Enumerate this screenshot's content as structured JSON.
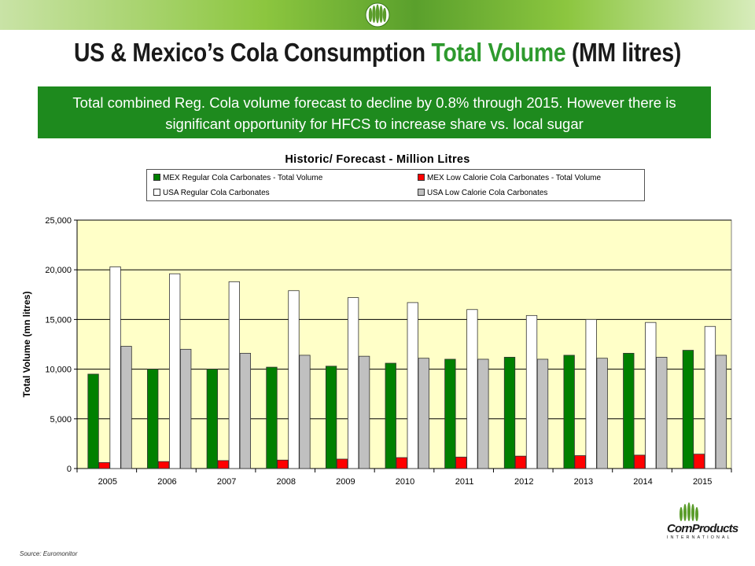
{
  "slide": {
    "title_part1": "US & Mexico’s Cola Consumption ",
    "title_accent": "Total Volume",
    "title_part2": " (MM litres)",
    "callout_line1": "Total combined Reg. Cola volume forecast to decline by  0.8% through 2015.  However there is",
    "callout_line2": "significant opportunity for HFCS to increase share vs. local sugar",
    "source": "Source: Euromonitor",
    "logo_name": "CornProducts",
    "logo_sub": "INTERNATIONAL"
  },
  "colors": {
    "accent_green": "#2e9a2e",
    "callout_bg": "#1e8a1e",
    "plot_bg": "#ffffc8"
  },
  "chart_data": {
    "type": "bar",
    "title": "Historic/ Forecast - Million Litres",
    "xlabel": "",
    "ylabel": "Total Volume (mn litres)",
    "ylim": [
      0,
      25000
    ],
    "yticks": [
      0,
      5000,
      10000,
      15000,
      20000,
      25000
    ],
    "ytick_labels": [
      "0",
      "5,000",
      "10,000",
      "15,000",
      "20,000",
      "25,000"
    ],
    "grid": true,
    "legend_position": "top",
    "categories": [
      "2005",
      "2006",
      "2007",
      "2008",
      "2009",
      "2010",
      "2011",
      "2012",
      "2013",
      "2014",
      "2015"
    ],
    "series": [
      {
        "name": "MEX Regular Cola Carbonates - Total Volume",
        "color": "#008000",
        "values": [
          9500,
          10000,
          10000,
          10200,
          10300,
          10600,
          11000,
          11200,
          11400,
          11600,
          11900
        ]
      },
      {
        "name": "MEX Low Calorie Cola Carbonates - Total Volume",
        "color": "#ff0000",
        "values": [
          600,
          700,
          800,
          850,
          950,
          1100,
          1150,
          1250,
          1300,
          1350,
          1450
        ]
      },
      {
        "name": "USA Regular Cola Carbonates",
        "color": "#ffffff",
        "values": [
          20300,
          19600,
          18800,
          17900,
          17200,
          16700,
          16000,
          15400,
          15000,
          14700,
          14300
        ]
      },
      {
        "name": "USA Low Calorie Cola Carbonates",
        "color": "#c0c0c0",
        "values": [
          12300,
          12000,
          11600,
          11400,
          11300,
          11100,
          11000,
          11000,
          11100,
          11200,
          11400
        ]
      }
    ]
  }
}
